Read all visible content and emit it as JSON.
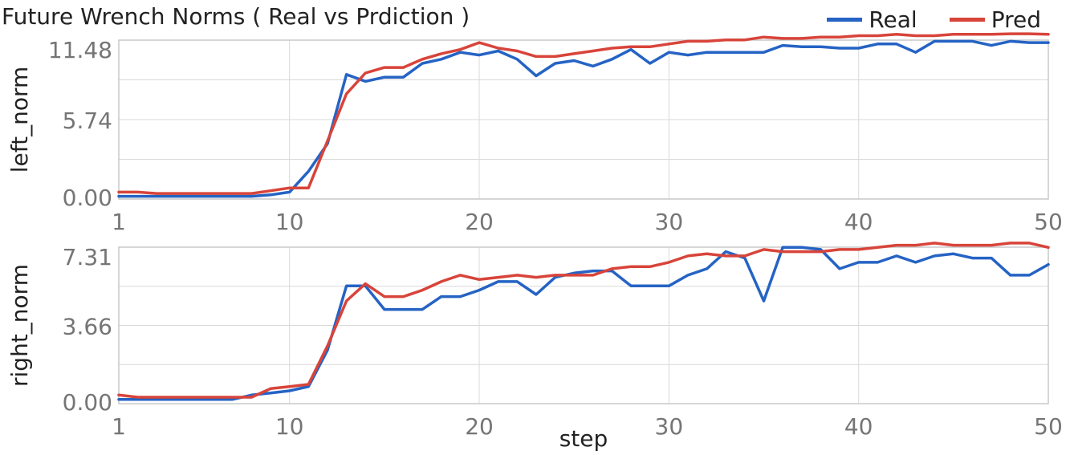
{
  "title": "Future Wrench Norms ( Real vs Prdiction )",
  "colors": {
    "real": "#2563c4",
    "pred": "#d8443a"
  },
  "chart_data": {
    "type": "line",
    "title": "Future Wrench Norms ( Real vs Prdiction )",
    "xlabel": "step",
    "legend": {
      "placement": "top-right",
      "entries": [
        "Real",
        "Pred"
      ]
    },
    "x": [
      1,
      2,
      3,
      4,
      5,
      6,
      7,
      8,
      9,
      10,
      11,
      12,
      13,
      14,
      15,
      16,
      17,
      18,
      19,
      20,
      21,
      22,
      23,
      24,
      25,
      26,
      27,
      28,
      29,
      30,
      31,
      32,
      33,
      34,
      35,
      36,
      37,
      38,
      39,
      40,
      41,
      42,
      43,
      44,
      45,
      46,
      47,
      48,
      49,
      50
    ],
    "x_ticks": [
      "1",
      "10",
      "20",
      "30",
      "40",
      "50"
    ],
    "grid": true,
    "panels": [
      {
        "ylabel": "left_norm",
        "ylim": [
          0,
          11.48
        ],
        "y_ticks": [
          "0.00",
          "5.74",
          "11.48"
        ],
        "series": [
          {
            "name": "Real",
            "values": [
              0.2,
              0.2,
              0.2,
              0.2,
              0.2,
              0.2,
              0.2,
              0.2,
              0.3,
              0.5,
              2.0,
              4.0,
              9.0,
              8.5,
              8.8,
              8.8,
              9.8,
              10.1,
              10.6,
              10.4,
              10.7,
              10.1,
              8.9,
              9.8,
              10.0,
              9.6,
              10.1,
              10.8,
              9.8,
              10.6,
              10.4,
              10.6,
              10.6,
              10.6,
              10.6,
              11.1,
              11.0,
              11.0,
              10.9,
              10.9,
              11.2,
              11.2,
              10.6,
              11.4,
              11.4,
              11.4,
              11.1,
              11.4,
              11.3,
              11.3
            ]
          },
          {
            "name": "Pred",
            "values": [
              0.5,
              0.5,
              0.4,
              0.4,
              0.4,
              0.4,
              0.4,
              0.4,
              0.6,
              0.8,
              0.8,
              4.2,
              7.6,
              9.1,
              9.5,
              9.5,
              10.1,
              10.5,
              10.8,
              11.3,
              10.9,
              10.7,
              10.3,
              10.3,
              10.5,
              10.7,
              10.9,
              11.0,
              11.0,
              11.2,
              11.4,
              11.4,
              11.5,
              11.5,
              11.7,
              11.6,
              11.6,
              11.7,
              11.7,
              11.8,
              11.8,
              11.9,
              11.8,
              11.8,
              11.9,
              11.9,
              11.9,
              12.0,
              12.0,
              11.9
            ]
          }
        ]
      },
      {
        "ylabel": "right_norm",
        "ylim": [
          0,
          7.31
        ],
        "y_ticks": [
          "0.00",
          "3.66",
          "7.31"
        ],
        "series": [
          {
            "name": "Real",
            "values": [
              0.2,
              0.2,
              0.2,
              0.2,
              0.2,
              0.2,
              0.2,
              0.4,
              0.5,
              0.6,
              0.8,
              2.5,
              5.5,
              5.5,
              4.4,
              4.4,
              4.4,
              5.0,
              5.0,
              5.3,
              5.7,
              5.7,
              5.1,
              5.9,
              6.1,
              6.2,
              6.2,
              5.5,
              5.5,
              5.5,
              6.0,
              6.3,
              7.1,
              6.8,
              4.8,
              7.3,
              7.3,
              7.2,
              6.3,
              6.6,
              6.6,
              6.9,
              6.6,
              6.9,
              7.0,
              6.8,
              6.8,
              6.0,
              6.0,
              6.5
            ]
          },
          {
            "name": "Pred",
            "values": [
              0.4,
              0.3,
              0.3,
              0.3,
              0.3,
              0.3,
              0.3,
              0.3,
              0.7,
              0.8,
              0.9,
              2.7,
              4.8,
              5.6,
              5.0,
              5.0,
              5.3,
              5.7,
              6.0,
              5.8,
              5.9,
              6.0,
              5.9,
              6.0,
              6.0,
              6.0,
              6.3,
              6.4,
              6.4,
              6.6,
              6.9,
              7.0,
              6.9,
              6.9,
              7.2,
              7.1,
              7.1,
              7.1,
              7.2,
              7.2,
              7.3,
              7.4,
              7.4,
              7.5,
              7.4,
              7.4,
              7.4,
              7.5,
              7.5,
              7.3
            ]
          }
        ]
      }
    ]
  }
}
